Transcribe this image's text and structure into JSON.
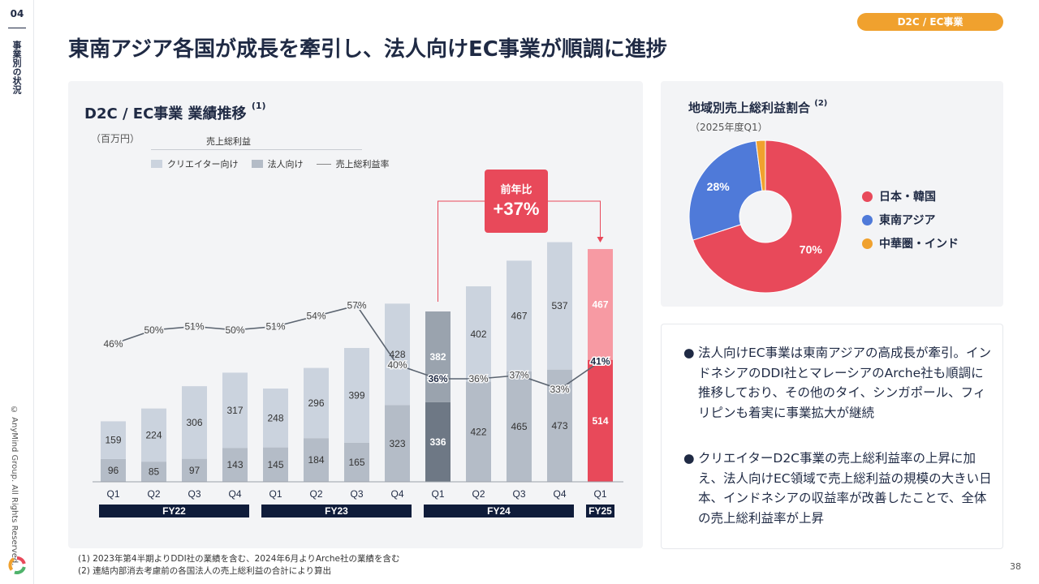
{
  "page": {
    "page_num_top": "04",
    "section_label": "事業別の状況",
    "copyright": "© AnyMind Group. All Rights Reserved.",
    "title": "東南アジア各国が成長を牽引し、法人向けEC事業が順調に進捗",
    "badge": "D2C / EC事業",
    "page_num": "38"
  },
  "colors": {
    "accent": "#e8495a",
    "accent_light": "#f79aa3",
    "creator": "#cbd3de",
    "corporate": "#b4bcc7",
    "fy24q1_top": "#9aa3ae",
    "fy24q1_bottom": "#6e7885",
    "fy_bar": "#0f1c3a",
    "pie_japan": "#e8495a",
    "pie_sea": "#4f7ad9",
    "pie_other": "#f0a12e",
    "badge": "#f0a12e"
  },
  "chart_header": {
    "title": "D2C / EC事業 業績推移",
    "title_note": "(1)",
    "unit": "（百万円）",
    "legend_group": "売上総利益",
    "legend_creator": "クリエイター向け",
    "legend_corporate": "法人向け",
    "legend_margin": "売上総利益率",
    "yoy_label": "前年比",
    "yoy_value": "+37%"
  },
  "chart_data": {
    "type": "bar",
    "title": "D2C / EC事業 業績推移",
    "unit": "（百万円）",
    "categories": [
      "Q1",
      "Q2",
      "Q3",
      "Q4",
      "Q1",
      "Q2",
      "Q3",
      "Q4",
      "Q1",
      "Q2",
      "Q3",
      "Q4",
      "Q1"
    ],
    "fiscal_years": [
      {
        "label": "FY22",
        "quarters": 4
      },
      {
        "label": "FY23",
        "quarters": 4
      },
      {
        "label": "FY24",
        "quarters": 4
      },
      {
        "label": "FY25",
        "quarters": 1
      }
    ],
    "series": [
      {
        "name": "法人向け",
        "values": [
          96,
          85,
          97,
          143,
          145,
          184,
          165,
          323,
          336,
          422,
          465,
          473,
          514
        ]
      },
      {
        "name": "クリエイター向け",
        "values": [
          159,
          224,
          306,
          317,
          248,
          296,
          399,
          428,
          382,
          402,
          467,
          537,
          467
        ]
      },
      {
        "name": "売上総利益率",
        "type": "line",
        "values": [
          46,
          50,
          51,
          50,
          51,
          54,
          57,
          40,
          36,
          36,
          37,
          33,
          41
        ],
        "labels": [
          "46%",
          "50%",
          "51%",
          "50%",
          "51%",
          "54%",
          "57%",
          "40%",
          "36%",
          "36%",
          "37%",
          "33%",
          "41%"
        ]
      }
    ],
    "annotation": {
      "label": "前年比",
      "value": "+37%",
      "from": "FY24 Q1",
      "to": "FY25 Q1"
    },
    "legend": "top-left",
    "grid": false
  },
  "pie": {
    "title": "地域別売上総利益割合",
    "title_note": "(2)",
    "subtitle": "（2025年度Q1）",
    "chart_data": {
      "type": "pie",
      "labels": [
        "日本・韓国",
        "東南アジア",
        "中華圏・インド"
      ],
      "values": [
        70,
        28,
        2
      ],
      "value_labels": [
        "70%",
        "28%",
        ""
      ]
    }
  },
  "bullets": [
    "法人向けEC事業は東南アジアの高成長が牽引。インドネシアのDDI社とマレーシアのArche社も順調に推移しており、その他のタイ、シンガポール、フィリピンも着実に事業拡大が継続",
    "クリエイターD2C事業の売上総利益率の上昇に加え、法人向けEC領域で売上総利益の規模の大きい日本、インドネシアの収益率が改善したことで、全体の売上総利益率が上昇"
  ],
  "footnotes": [
    "(1) 2023年第4半期よりDDI社の業績を含む、2024年6月よりArche社の業績を含む",
    "(2) 連結内部消去考慮前の各国法人の売上総利益の合計により算出"
  ]
}
